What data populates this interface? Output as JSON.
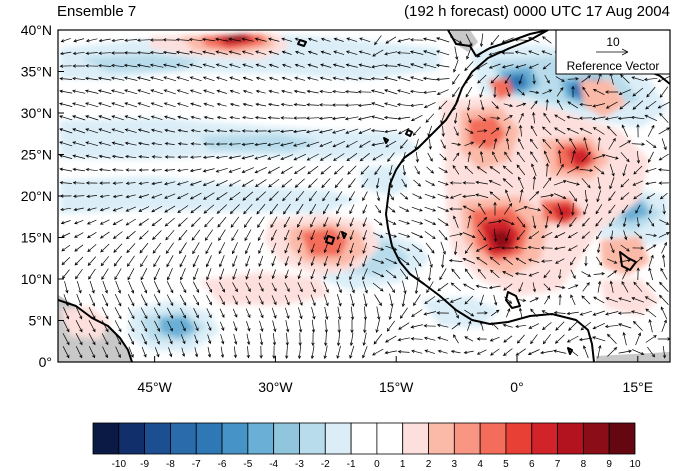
{
  "map": {
    "title_left": "Ensemble 7",
    "title_right": "(192 h forecast) 0000 UTC 17 Aug 2004",
    "lat_ticks": [
      {
        "lat": 40,
        "label": "40°N"
      },
      {
        "lat": 35,
        "label": "35°N"
      },
      {
        "lat": 30,
        "label": "30°N"
      },
      {
        "lat": 25,
        "label": "25°N"
      },
      {
        "lat": 20,
        "label": "20°N"
      },
      {
        "lat": 15,
        "label": "15°N"
      },
      {
        "lat": 10,
        "label": "10°N"
      },
      {
        "lat": 5,
        "label": "5°N"
      },
      {
        "lat": 0,
        "label": "0°"
      }
    ],
    "lon_ticks": [
      {
        "lon": -45,
        "label": "45°W"
      },
      {
        "lon": -30,
        "label": "30°W"
      },
      {
        "lon": -15,
        "label": "15°W"
      },
      {
        "lon": 0,
        "label": "0°"
      },
      {
        "lon": 15,
        "label": "15°E"
      }
    ],
    "extent": {
      "lon_min": -57,
      "lon_max": 19,
      "lat_min": 0,
      "lat_max": 40
    },
    "reference_vector": {
      "magnitude": "10",
      "label": "Reference Vector"
    }
  },
  "colorbar": {
    "labels": [
      "-10",
      "-9",
      "-8",
      "-7",
      "-6",
      "-5",
      "-4",
      "-3",
      "-2",
      "-1",
      "0",
      "1",
      "2",
      "3",
      "4",
      "5",
      "6",
      "7",
      "8",
      "9",
      "10"
    ],
    "colors": [
      "#0b1a45",
      "#11306b",
      "#1c4f92",
      "#2a6bac",
      "#2f78b6",
      "#4694c7",
      "#6aafd5",
      "#8fc5dd",
      "#b8dceb",
      "#dbeef8",
      "#ffffff",
      "#ffffff",
      "#fde0dd",
      "#fbb9a8",
      "#f89683",
      "#f36d5a",
      "#e84034",
      "#d0232a",
      "#b3131f",
      "#8b0d18",
      "#650711"
    ]
  },
  "colors": {
    "land_coast": "#000000",
    "missing": "#c8c8c8"
  }
}
